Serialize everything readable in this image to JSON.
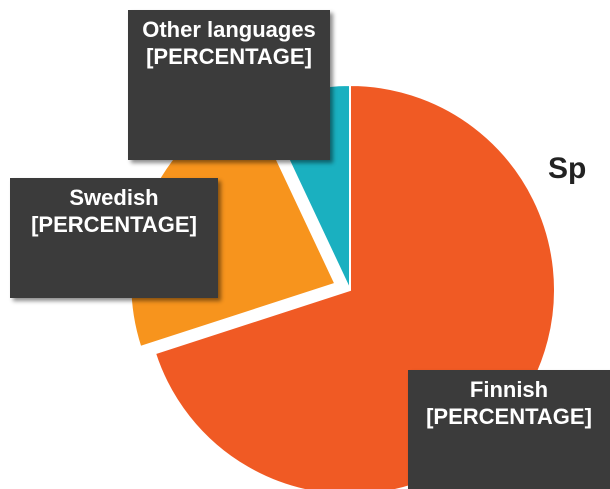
{
  "chart_data": {
    "type": "pie",
    "title": "Sp",
    "categories": [
      "Finnish",
      "Swedish",
      "Other languages"
    ],
    "values": [
      70,
      23,
      7
    ],
    "value_labels": [
      "[PERCENTAGE]",
      "[PERCENTAGE]",
      "[PERCENTAGE]"
    ],
    "colors": [
      "#f05a24",
      "#f7941d",
      "#1ab0c0"
    ]
  }
}
